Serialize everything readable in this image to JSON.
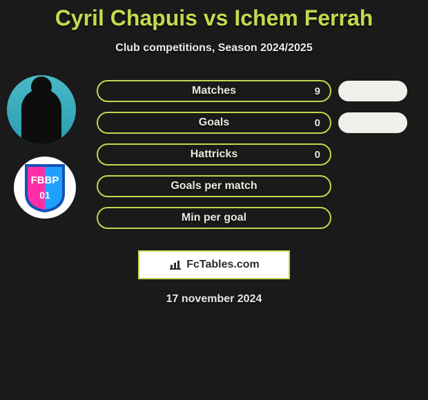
{
  "title": "Cyril Chapuis vs Ichem Ferrah",
  "subtitle": "Club competitions, Season 2024/2025",
  "date": "17 november 2024",
  "brand": {
    "label": "FcTables.com",
    "border_color": "#c5d94f"
  },
  "colors": {
    "title_color": "#c5d94f",
    "bg": "#1a1a1a",
    "bar_border": "#c5d94f",
    "bar_text": "#e8e8df",
    "pill": "#eef0ea"
  },
  "player2_badge": {
    "text": "FBBP",
    "sub": "01",
    "left_color": "#ff2ea6",
    "right_color": "#1ea0ff",
    "outline": "#1351b5"
  },
  "stats": [
    {
      "label": "Matches",
      "value": "9",
      "show_pill": true
    },
    {
      "label": "Goals",
      "value": "0",
      "show_pill": true
    },
    {
      "label": "Hattricks",
      "value": "0",
      "show_pill": false
    },
    {
      "label": "Goals per match",
      "value": "",
      "show_pill": false
    },
    {
      "label": "Min per goal",
      "value": "",
      "show_pill": false
    }
  ]
}
